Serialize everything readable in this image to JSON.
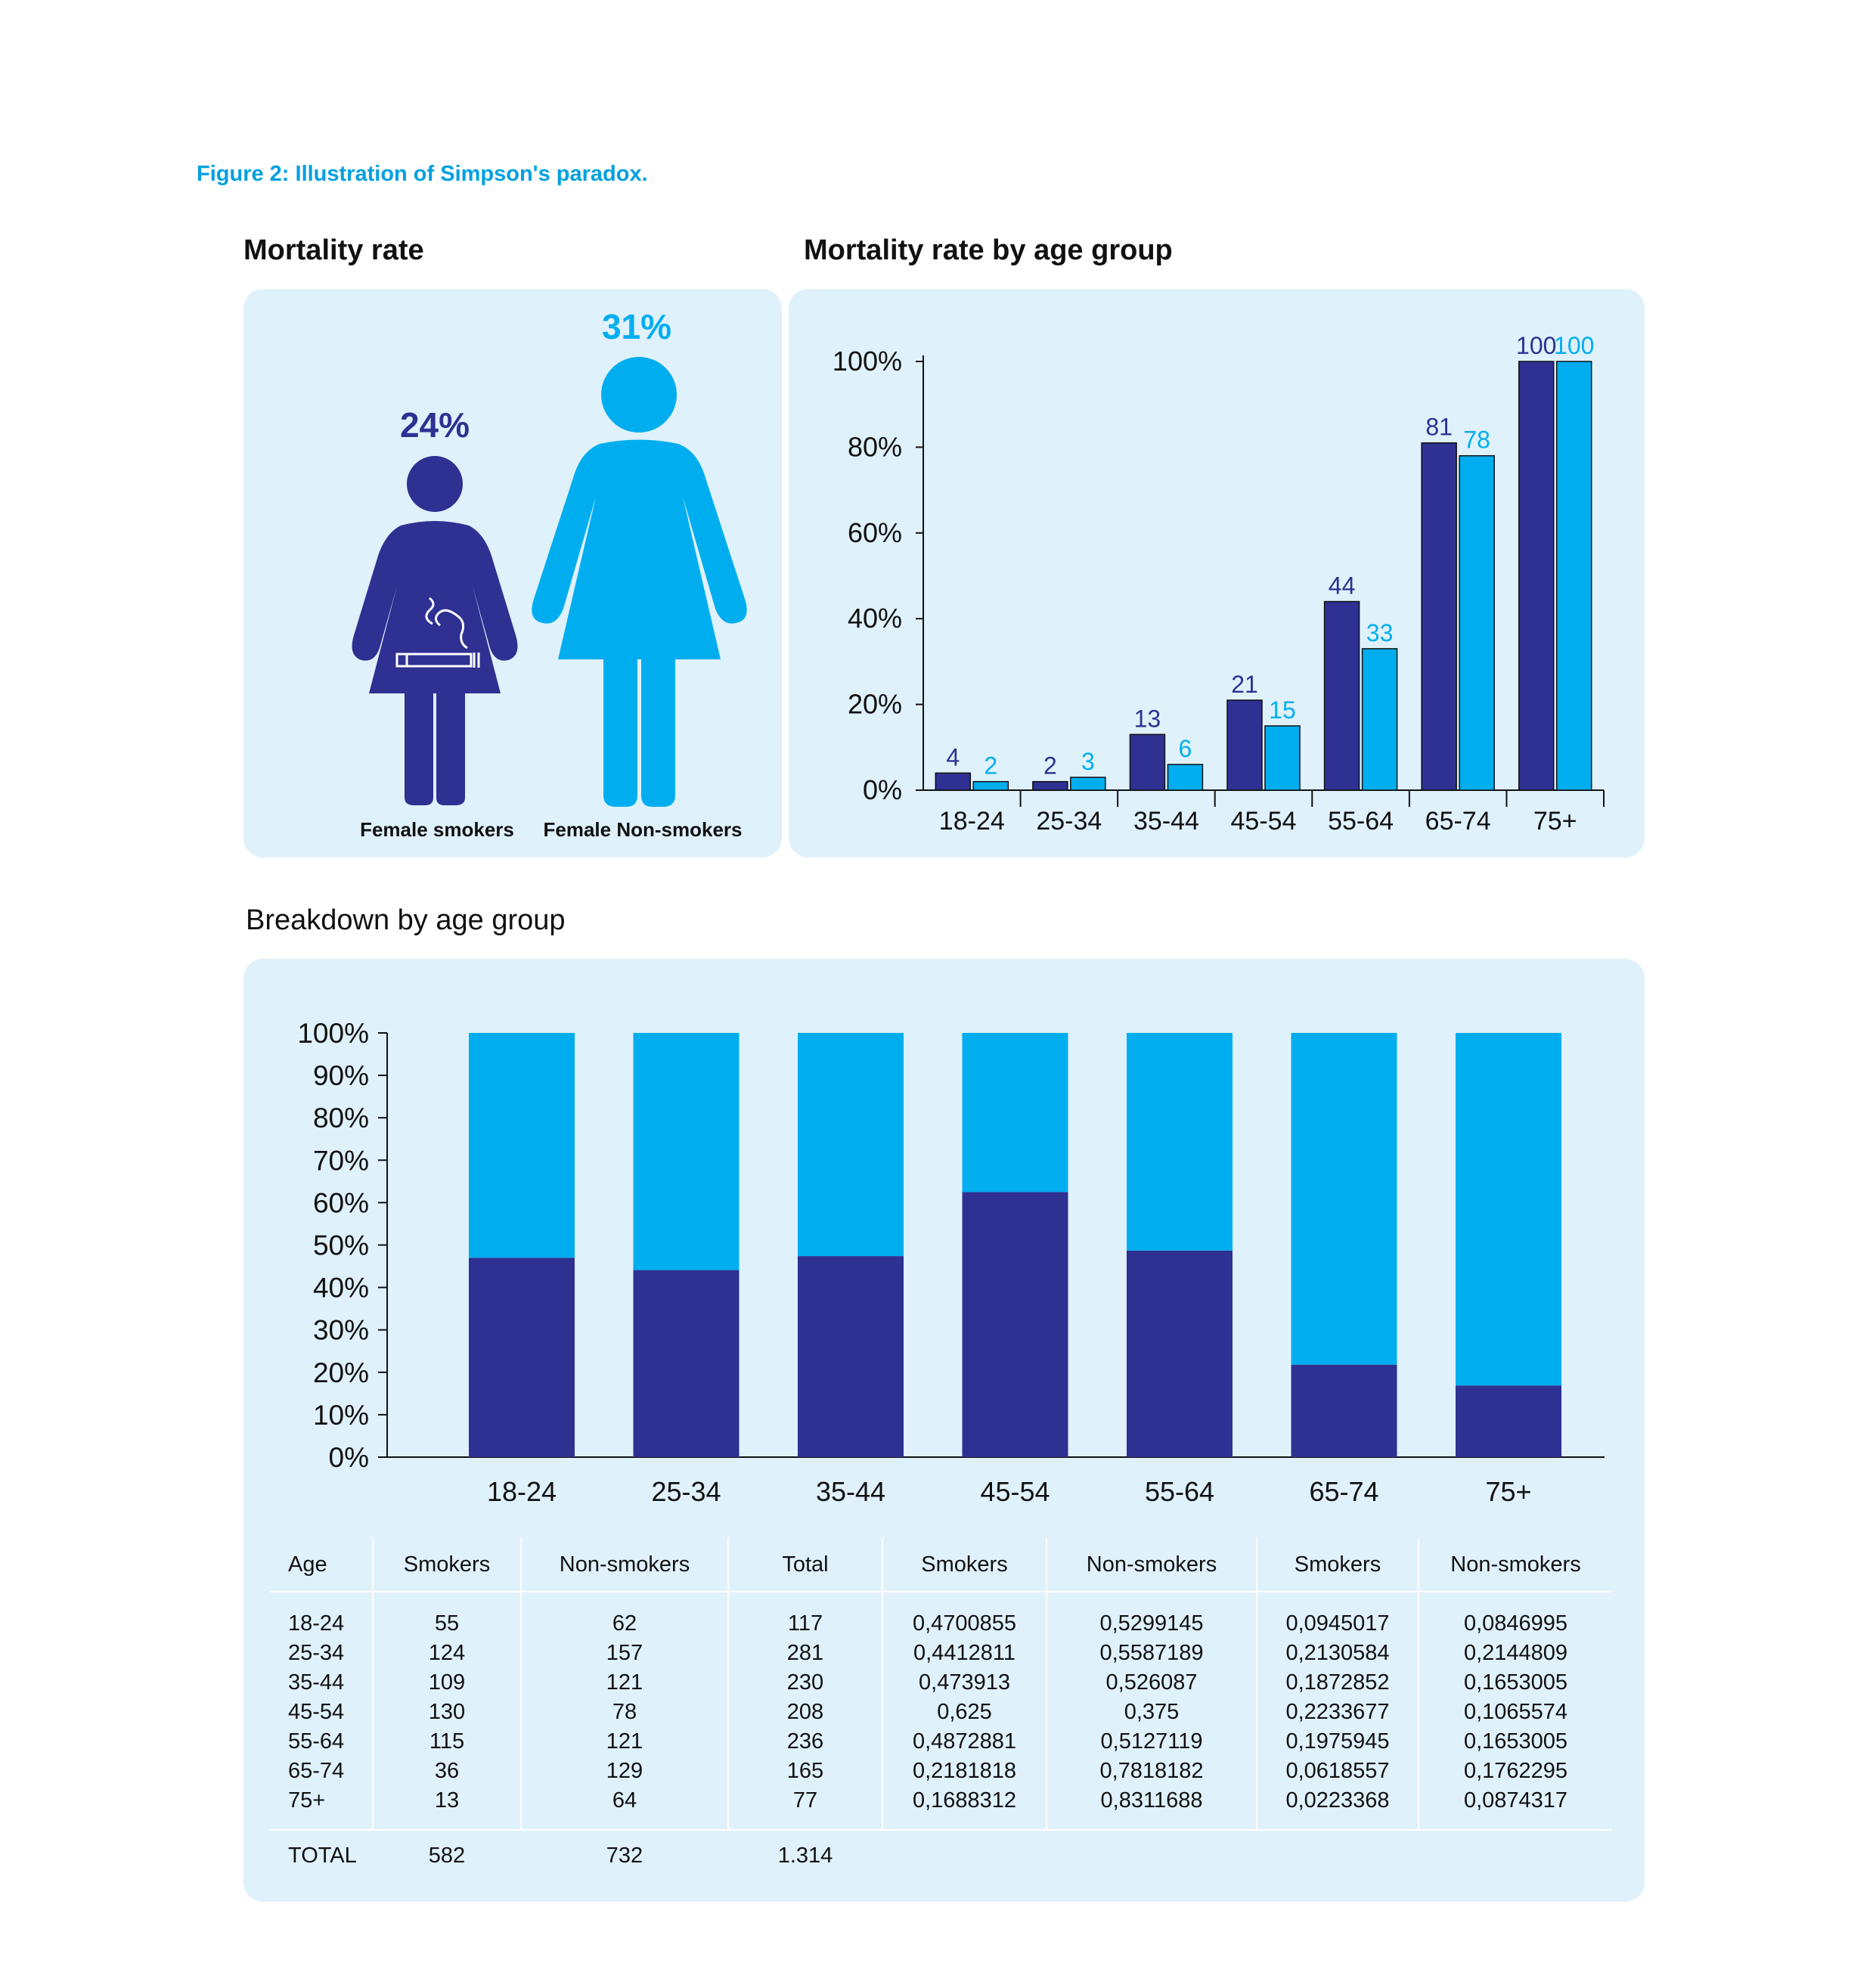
{
  "figure_caption": "Figure 2: Illustration of Simpson's paradox.",
  "sections": {
    "mortality_rate_title": "Mortality rate",
    "mortality_by_age_title": "Mortality rate by age group",
    "breakdown_title": "Breakdown by age group"
  },
  "colors": {
    "smokers": "#2e3192",
    "non_smokers": "#00aeef",
    "panel_bg": "#dff1fb",
    "caption": "#00a0e0"
  },
  "icons": [
    "female-smoker-figure-icon",
    "cigarette-icon",
    "female-non-smoker-figure-icon"
  ],
  "mortality_overview": {
    "smokers_pct": "24%",
    "non_smokers_pct": "31%",
    "smokers_label": "Female smokers",
    "non_smokers_label": "Female Non-smokers"
  },
  "chart_data": [
    {
      "type": "bar",
      "title": "Mortality rate by age group",
      "categories": [
        "18-24",
        "25-34",
        "35-44",
        "45-54",
        "55-64",
        "65-74",
        "75+"
      ],
      "series": [
        {
          "values": [
            4,
            2,
            13,
            21,
            44,
            81,
            100
          ],
          "color": "#2e3192"
        },
        {
          "values": [
            2,
            3,
            6,
            15,
            33,
            78,
            100
          ],
          "color": "#00aeef"
        }
      ],
      "ylim": [
        0,
        100
      ],
      "yticks": [
        "0%",
        "20%",
        "40%",
        "60%",
        "80%",
        "100%"
      ],
      "grid": false,
      "legend": "none"
    },
    {
      "type": "bar",
      "stacked": true,
      "title": "Breakdown by age group",
      "categories": [
        "18-24",
        "25-34",
        "35-44",
        "45-54",
        "55-64",
        "65-74",
        "75+"
      ],
      "series": [
        {
          "values": [
            47.0,
            44.1,
            47.4,
            62.5,
            48.7,
            21.8,
            16.9
          ],
          "color": "#2e3192"
        },
        {
          "values": [
            53.0,
            55.9,
            52.6,
            37.5,
            51.3,
            78.2,
            83.1
          ],
          "color": "#00aeef"
        }
      ],
      "ylim": [
        0,
        100
      ],
      "yticks": [
        "0%",
        "10%",
        "20%",
        "30%",
        "40%",
        "50%",
        "60%",
        "70%",
        "80%",
        "90%",
        "100%"
      ],
      "grid": false,
      "legend": "none"
    }
  ],
  "table": {
    "headers": [
      "Age",
      "Smokers",
      "Non-smokers",
      "Total",
      "Smokers",
      "Non-smokers",
      "Smokers",
      "Non-smokers"
    ],
    "rows": [
      [
        "18-24",
        "55",
        "62",
        "117",
        "0,4700855",
        "0,5299145",
        "0,0945017",
        "0,0846995"
      ],
      [
        "25-34",
        "124",
        "157",
        "281",
        "0,4412811",
        "0,5587189",
        "0,2130584",
        "0,2144809"
      ],
      [
        "35-44",
        "109",
        "121",
        "230",
        "0,473913",
        "0,526087",
        "0,1872852",
        "0,1653005"
      ],
      [
        "45-54",
        "130",
        "78",
        "208",
        "0,625",
        "0,375",
        "0,2233677",
        "0,1065574"
      ],
      [
        "55-64",
        "115",
        "121",
        "236",
        "0,4872881",
        "0,5127119",
        "0,1975945",
        "0,1653005"
      ],
      [
        "65-74",
        "36",
        "129",
        "165",
        "0,2181818",
        "0,7818182",
        "0,0618557",
        "0,1762295"
      ],
      [
        "75+",
        "13",
        "64",
        "77",
        "0,1688312",
        "0,8311688",
        "0,0223368",
        "0,0874317"
      ]
    ],
    "total": [
      "TOTAL",
      "582",
      "732",
      "1.314"
    ]
  }
}
